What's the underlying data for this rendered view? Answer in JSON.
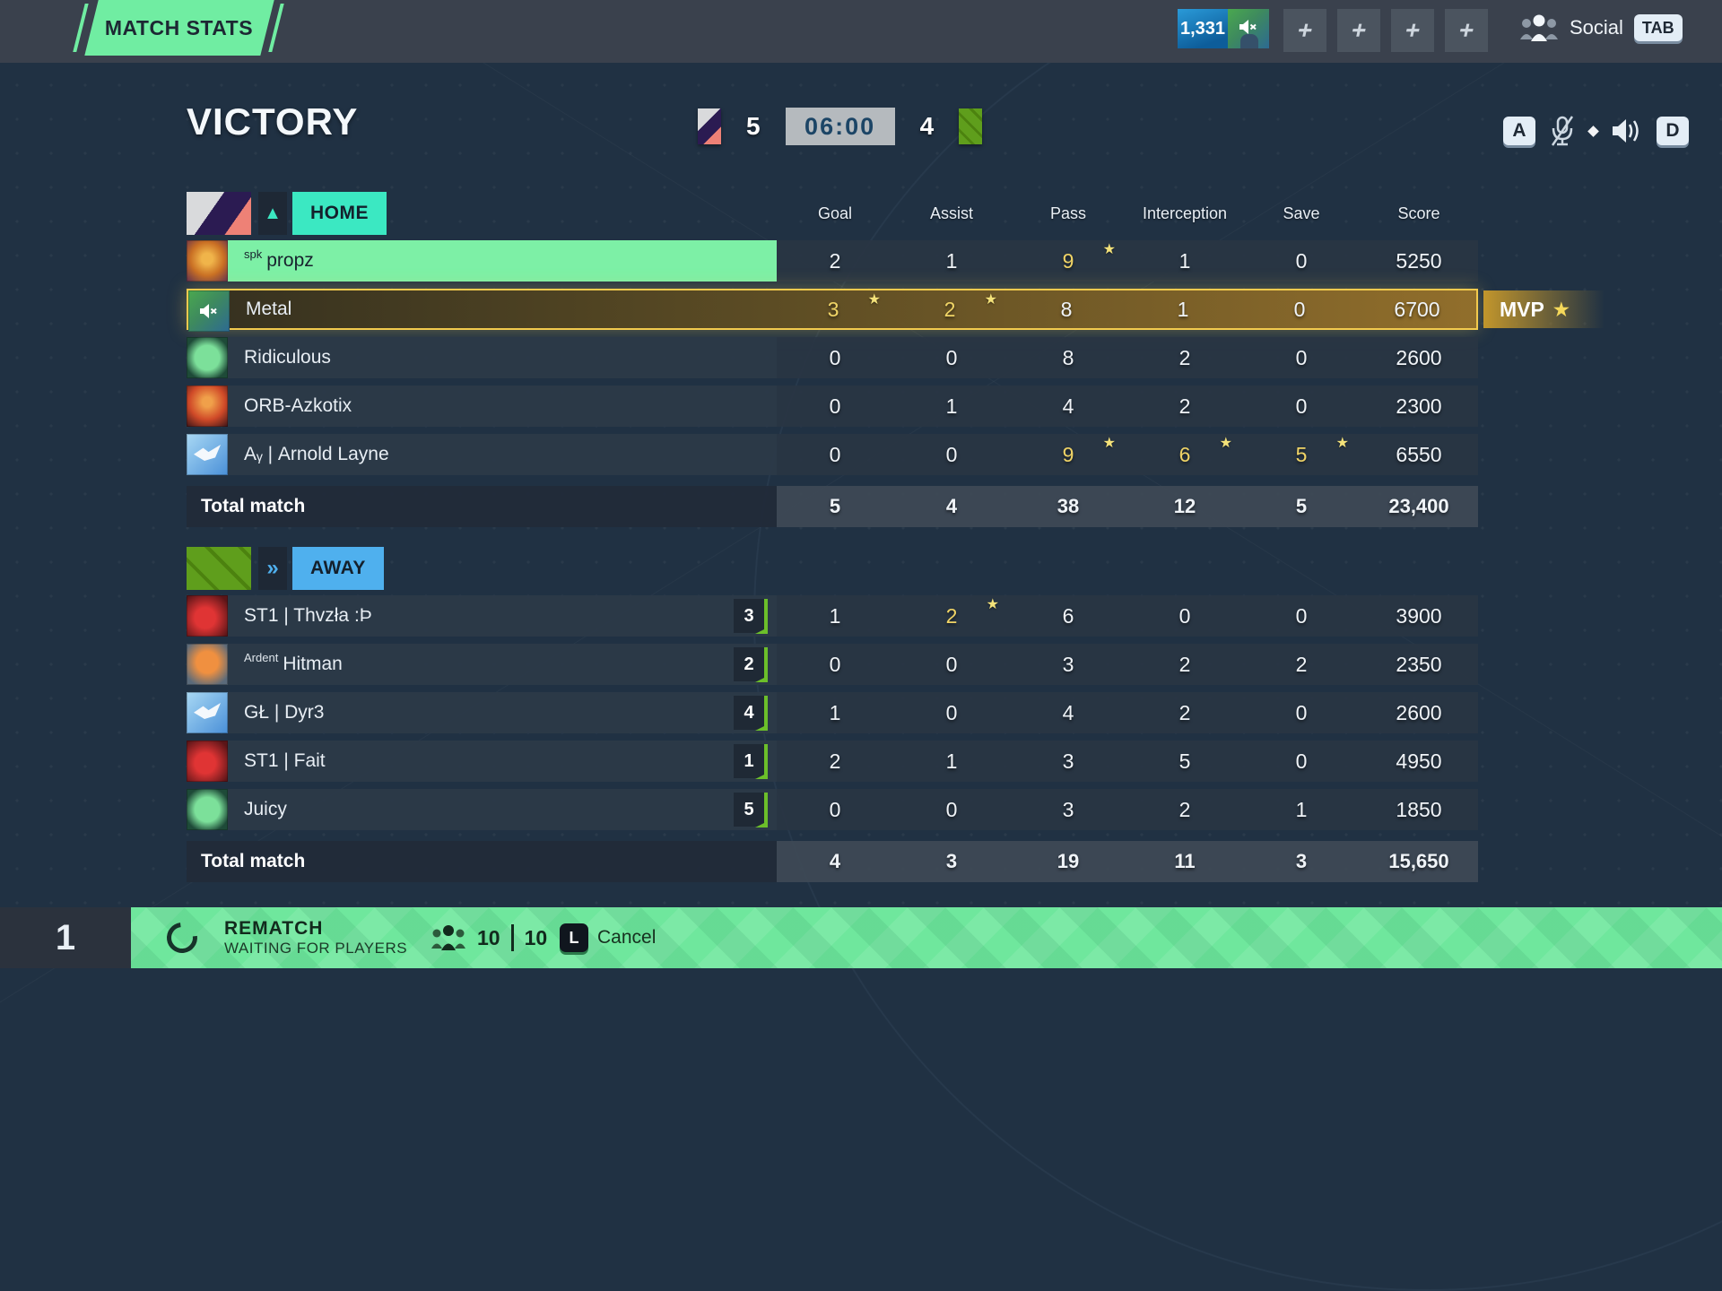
{
  "top_bar": {
    "title_badge": "MATCH STATS",
    "currency": "1,331",
    "plus_slots": [
      "+",
      "+",
      "+",
      "+"
    ],
    "social": {
      "label": "Social",
      "key": "TAB"
    }
  },
  "header": {
    "result_title": "VICTORY",
    "scoreboard": {
      "home_score": "5",
      "timer": "06:00",
      "away_score": "4"
    },
    "controls": {
      "left_key": "A",
      "right_key": "D"
    }
  },
  "stats_table": {
    "columns": [
      "Goal",
      "Assist",
      "Pass",
      "Interception",
      "Save",
      "Score"
    ],
    "home": {
      "team_label": "HOME",
      "emblem_glyph": "▲",
      "players": [
        {
          "avatar": "lion",
          "prefix": "spk",
          "name": "propz",
          "stats": [
            "2",
            "1",
            "9",
            "1",
            "0",
            "5250"
          ],
          "starred": [
            2
          ],
          "highlight": "self"
        },
        {
          "avatar": "muted-player",
          "muted": true,
          "name": "Metal",
          "stats": [
            "3",
            "2",
            "8",
            "1",
            "0",
            "6700"
          ],
          "starred": [
            0,
            1
          ],
          "highlight": "mvp",
          "tag": "MVP"
        },
        {
          "avatar": "ball-green",
          "name": "Ridiculous",
          "stats": [
            "0",
            "0",
            "8",
            "2",
            "0",
            "2600"
          ],
          "starred": []
        },
        {
          "avatar": "orb-red",
          "name": "ORB-Azkotix",
          "stats": [
            "0",
            "1",
            "4",
            "2",
            "0",
            "2300"
          ],
          "starred": []
        },
        {
          "avatar": "sky-bird",
          "name": "Aᵧ | Arnold Layne",
          "stats": [
            "0",
            "0",
            "9",
            "6",
            "5",
            "6550"
          ],
          "starred": [
            2,
            3,
            4
          ]
        }
      ],
      "total": {
        "label": "Total match",
        "values": [
          "5",
          "4",
          "38",
          "12",
          "5",
          "23,400"
        ]
      }
    },
    "away": {
      "team_label": "AWAY",
      "emblem_glyph": "»",
      "players": [
        {
          "avatar": "cleat-red",
          "name": "ST1 | Thvzła :Þ",
          "rank_badge": "3",
          "stats": [
            "1",
            "2",
            "6",
            "0",
            "0",
            "3900"
          ],
          "starred": [
            1
          ]
        },
        {
          "avatar": "fox",
          "prefix": "Ardent",
          "name": "Hitman",
          "rank_badge": "2",
          "stats": [
            "0",
            "0",
            "3",
            "2",
            "2",
            "2350"
          ],
          "starred": []
        },
        {
          "avatar": "sky-bird",
          "name": "GŁ | Dyr3",
          "rank_badge": "4",
          "stats": [
            "1",
            "0",
            "4",
            "2",
            "0",
            "2600"
          ],
          "starred": []
        },
        {
          "avatar": "cleat-red",
          "name": "ST1 | Fait",
          "rank_badge": "1",
          "stats": [
            "2",
            "1",
            "3",
            "5",
            "0",
            "4950"
          ],
          "starred": []
        },
        {
          "avatar": "ball-green",
          "name": "Juicy",
          "rank_badge": "5",
          "stats": [
            "0",
            "0",
            "3",
            "2",
            "1",
            "1850"
          ],
          "starred": []
        }
      ],
      "total": {
        "label": "Total match",
        "values": [
          "4",
          "3",
          "19",
          "11",
          "3",
          "15,650"
        ]
      }
    }
  },
  "footer": {
    "queue_number": "1",
    "action_title": "REMATCH",
    "status_text": "WAITING FOR PLAYERS",
    "players_ready": "10",
    "players_total": "10",
    "cancel": {
      "key": "L",
      "label": "Cancel"
    }
  },
  "icons": {
    "star": "★"
  },
  "colors": {
    "accent_green": "#70eda2",
    "accent_teal": "#3be8c2",
    "accent_blue": "#4fb0ee",
    "mvp_gold": "#f2ca4e",
    "self_green": "#7df0a6"
  }
}
